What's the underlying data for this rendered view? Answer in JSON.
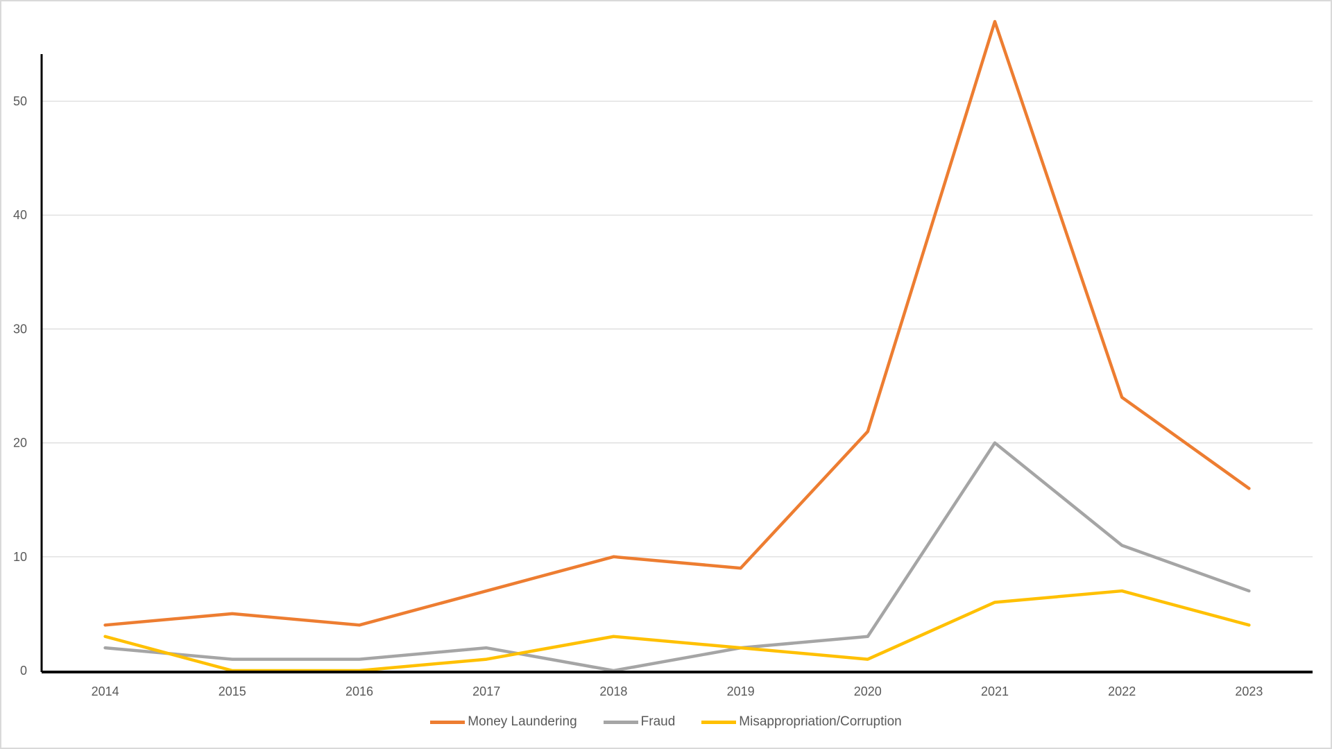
{
  "chart_data": {
    "type": "line",
    "title": "",
    "xlabel": "",
    "ylabel": "",
    "categories": [
      "2014",
      "2015",
      "2016",
      "2017",
      "2018",
      "2019",
      "2020",
      "2021",
      "2022",
      "2023"
    ],
    "ylim": [
      0,
      57
    ],
    "yticks": [
      0,
      10,
      20,
      30,
      40,
      50
    ],
    "grid": true,
    "legend_position": "bottom",
    "series": [
      {
        "name": "Money Laundering",
        "color": "#ED7D31",
        "values": [
          4,
          5,
          4,
          7,
          10,
          9,
          21,
          57,
          24,
          16
        ]
      },
      {
        "name": "Fraud",
        "color": "#A5A5A5",
        "values": [
          2,
          1,
          1,
          2,
          0,
          2,
          3,
          20,
          11,
          7
        ]
      },
      {
        "name": "Misappropriation/Corruption",
        "color": "#FFC000",
        "values": [
          3,
          0,
          0,
          1,
          3,
          2,
          1,
          6,
          7,
          4
        ]
      }
    ]
  }
}
